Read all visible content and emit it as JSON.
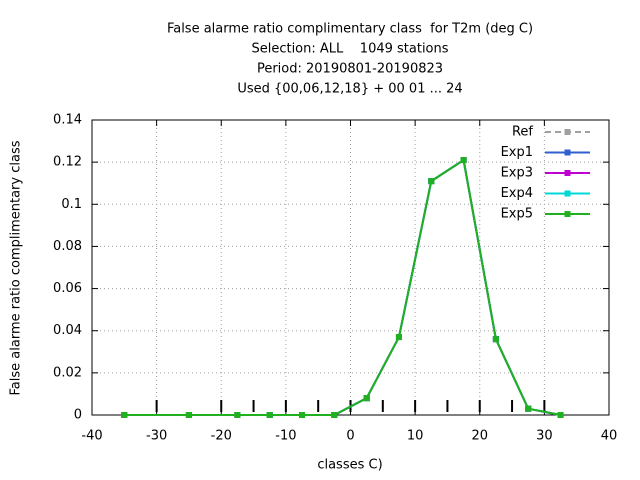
{
  "chart_data": {
    "type": "line",
    "title": [
      "False alarme ratio complimentary class  for T2m (deg C)",
      "Selection: ALL    1049 stations",
      "Period: 20190801-20190823",
      "Used {00,06,12,18} + 00 01 ... 24"
    ],
    "xlabel": "classes C)",
    "ylabel": "False alarme ratio complimentary class",
    "x": [
      -35,
      -25,
      -17.5,
      -12.5,
      -7.5,
      -2.5,
      2.5,
      7.5,
      12.5,
      17.5,
      22.5,
      27.5,
      32.5
    ],
    "series": [
      {
        "name": "Ref",
        "color": "#a0a0a0",
        "dashed": true,
        "values": [
          0,
          0,
          0,
          0,
          0,
          0,
          0.008,
          0.037,
          0.111,
          0.121,
          0.036,
          0.003,
          0
        ]
      },
      {
        "name": "Exp1",
        "color": "#3060d0",
        "values": [
          0,
          0,
          0,
          0,
          0,
          0,
          0.008,
          0.037,
          0.111,
          0.121,
          0.036,
          0.003,
          0
        ]
      },
      {
        "name": "Exp3",
        "color": "#c000d0",
        "values": [
          0,
          0,
          0,
          0,
          0,
          0,
          0.008,
          0.037,
          0.111,
          0.121,
          0.036,
          0.003,
          0
        ]
      },
      {
        "name": "Exp4",
        "color": "#00d8d8",
        "values": [
          0,
          0,
          0,
          0,
          0,
          0,
          0.008,
          0.037,
          0.111,
          0.121,
          0.036,
          0.003,
          0
        ]
      },
      {
        "name": "Exp5",
        "color": "#20b020",
        "values": [
          0,
          0,
          0,
          0,
          0,
          0,
          0.008,
          0.037,
          0.111,
          0.121,
          0.036,
          0.003,
          0
        ]
      }
    ],
    "class_bounds": [
      -30,
      -20,
      -15,
      -10,
      -5,
      0,
      5,
      10,
      15,
      20,
      25,
      30
    ],
    "xlim": [
      -40,
      40
    ],
    "xticks": [
      -40,
      -30,
      -20,
      -10,
      0,
      10,
      20,
      30,
      40
    ],
    "ylim": [
      0,
      0.14
    ],
    "yticks": [
      0,
      0.02,
      0.04,
      0.06,
      0.08,
      0.1,
      0.12,
      0.14
    ],
    "grid": true,
    "legend": "top-right"
  }
}
